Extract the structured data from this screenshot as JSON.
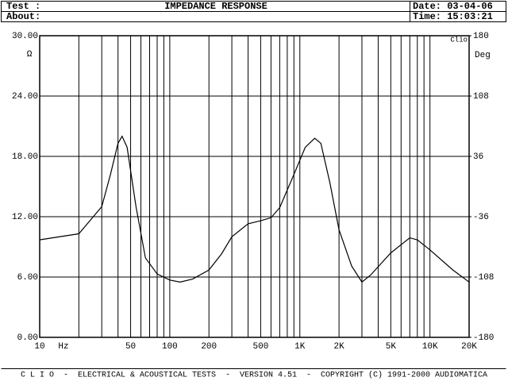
{
  "header": {
    "test": "Test :",
    "about": "About:",
    "title": "IMPEDANCE RESPONSE",
    "date": "Date: 03-04-06",
    "time": "Time: 15:03:21"
  },
  "footer": "C L I O  -  ELECTRICAL & ACOUSTICAL TESTS  -  VERSION 4.51  -  COPYRIGHT (C) 1991-2000 AUDIOMATICA",
  "chart_data": {
    "type": "line",
    "xscale": "log",
    "color": "#000000",
    "grid": true,
    "xlabel": "Hz",
    "ylabel": "Ω",
    "y2label": "Deg",
    "annotation": "Clio",
    "x": [
      10,
      20,
      30,
      35,
      40,
      43,
      47,
      55,
      65,
      80,
      100,
      120,
      150,
      200,
      250,
      300,
      400,
      500,
      600,
      700,
      900,
      1100,
      1300,
      1450,
      1700,
      2000,
      2500,
      3000,
      3500,
      5000,
      7000,
      8000,
      10000,
      15000,
      20000
    ],
    "values": [
      9.7,
      10.3,
      13.0,
      16.2,
      19.3,
      20.0,
      18.9,
      13.0,
      7.9,
      6.3,
      5.7,
      5.5,
      5.8,
      6.7,
      8.3,
      10.0,
      11.3,
      11.6,
      11.9,
      12.9,
      16.2,
      18.9,
      19.8,
      19.3,
      15.4,
      10.7,
      7.1,
      5.5,
      6.2,
      8.4,
      9.9,
      9.7,
      8.7,
      6.7,
      5.5
    ],
    "xlim": [
      10,
      20000
    ],
    "xticks": [
      10,
      50,
      100,
      200,
      500,
      {
        "value": 1000,
        "label": "1K"
      },
      {
        "value": 2000,
        "label": "2K"
      },
      {
        "value": 5000,
        "label": "5K"
      },
      {
        "value": 10000,
        "label": "10K"
      },
      {
        "value": 20000,
        "label": "20K"
      }
    ],
    "xminor": [
      20,
      30,
      40,
      60,
      70,
      80,
      90,
      300,
      400,
      600,
      700,
      800,
      900,
      3000,
      4000,
      6000,
      7000,
      8000,
      9000
    ],
    "ylim": [
      0,
      30
    ],
    "yticks": [
      {
        "value": 30,
        "label": "30.00"
      },
      {
        "value": 24,
        "label": "24.00"
      },
      {
        "value": 18,
        "label": "18.00"
      },
      {
        "value": 12,
        "label": "12.00"
      },
      {
        "value": 6,
        "label": "6.00"
      },
      {
        "value": 0,
        "label": "0.00"
      }
    ],
    "y2lim": [
      -180,
      180
    ],
    "y2ticks": [
      180,
      108,
      36,
      -36,
      -108,
      -180
    ]
  }
}
